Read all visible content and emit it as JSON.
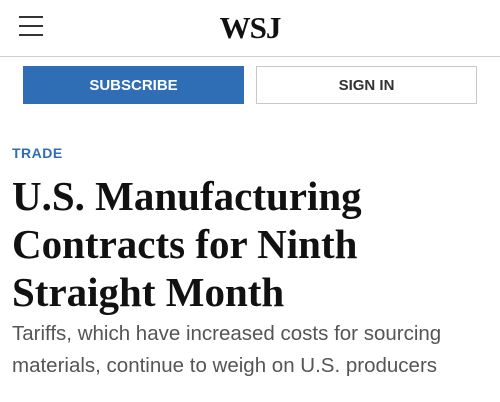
{
  "header": {
    "logo": "WSJ"
  },
  "buttons": {
    "subscribe": "SUBSCRIBE",
    "sign_in": "SIGN IN"
  },
  "article": {
    "section": "TRADE",
    "headline": "U.S. Manufacturing Contracts for Ninth Straight Month",
    "subheadline": "Tariffs, which have increased costs for sourcing materials, continue to weigh on U.S. producers"
  }
}
